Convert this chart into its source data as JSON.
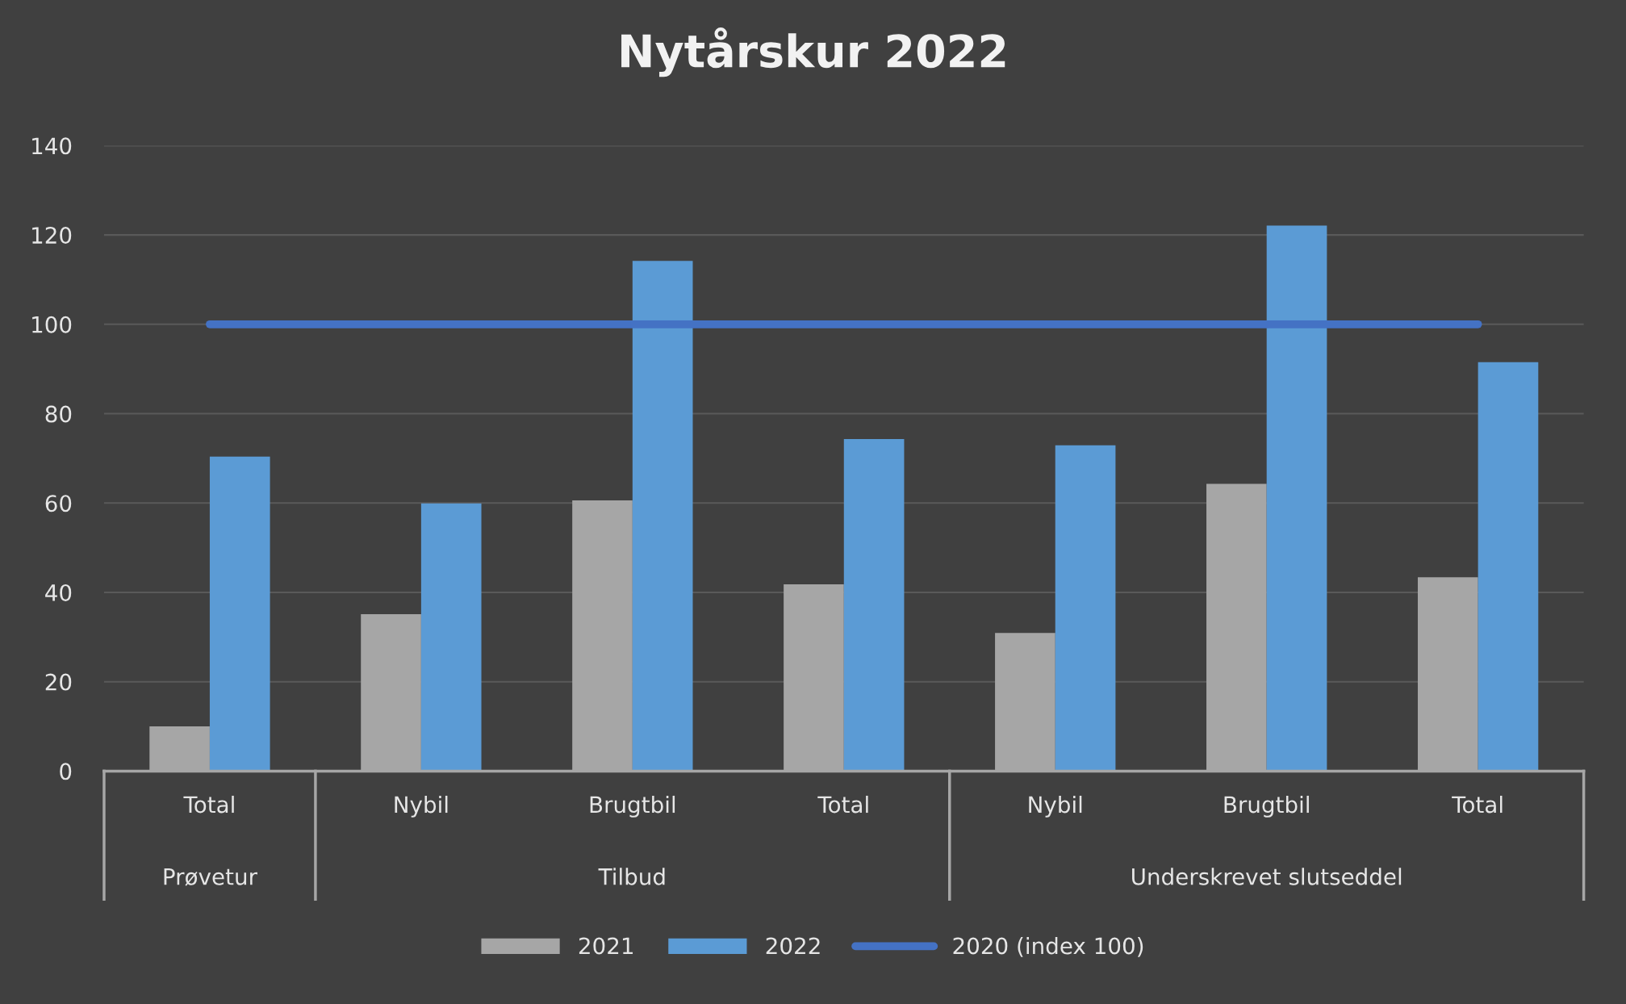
{
  "chart_data": {
    "type": "bar",
    "title": "Nytårskur 2022",
    "categories": [
      "Total",
      "Nybil",
      "Brugtbil",
      "Total",
      "Nybil",
      "Brugtbil",
      "Total"
    ],
    "series": [
      {
        "name": "2021",
        "color": "#a6a6a6",
        "values": [
          10.0,
          35.1,
          60.6,
          41.8,
          30.9,
          64.3,
          43.4
        ]
      },
      {
        "name": "2022",
        "color": "#5b9bd5",
        "values": [
          70.4,
          59.9,
          114.2,
          74.3,
          72.9,
          122.1,
          91.5
        ]
      },
      {
        "name": "2020 (index 100)",
        "type": "line",
        "color": "#4472c4",
        "values": [
          100,
          100,
          100,
          100,
          100,
          100,
          100
        ]
      }
    ],
    "annotations": [
      "Prøvetur",
      "Tilbud",
      "Underskrevet slutseddel"
    ],
    "ylim": [
      0,
      140
    ],
    "yticks": [
      0,
      20,
      40,
      60,
      80,
      100,
      120,
      140
    ],
    "grid": "y",
    "legend": "bottom"
  }
}
